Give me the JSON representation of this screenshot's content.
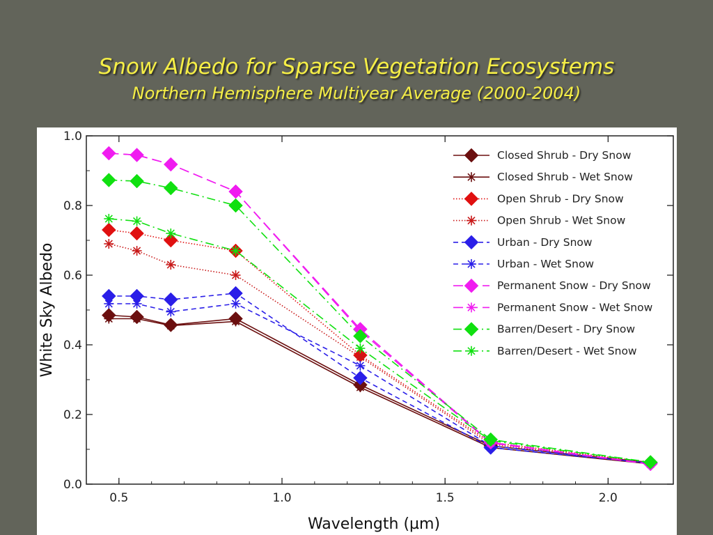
{
  "slide": {
    "title": "Snow Albedo for Sparse Vegetation Ecosystems",
    "subtitle": "Northern Hemisphere Multiyear Average (2000-2004)"
  },
  "chart_data": {
    "type": "line",
    "xlabel": "Wavelength (µm)",
    "ylabel": "White Sky Albedo",
    "xlim": [
      0.4,
      2.2
    ],
    "ylim": [
      0.0,
      1.0
    ],
    "x_ticks": [
      "0.5",
      "1.0",
      "1.5",
      "2.0"
    ],
    "x_tick_values": [
      0.5,
      1.0,
      1.5,
      2.0
    ],
    "y_ticks": [
      "0.0",
      "0.2",
      "0.4",
      "0.6",
      "0.8",
      "1.0"
    ],
    "y_tick_values": [
      0.0,
      0.2,
      0.4,
      0.6,
      0.8,
      1.0
    ],
    "legend_position": "top-right",
    "x": [
      0.469,
      0.555,
      0.659,
      0.858,
      1.24,
      1.64,
      2.13
    ],
    "series": [
      {
        "name": "Closed Shrub - Dry Snow",
        "color": "#6b0f0f",
        "marker": "diamond",
        "line": "solid",
        "values": [
          0.485,
          0.48,
          0.457,
          0.475,
          0.285,
          0.11,
          0.062
        ]
      },
      {
        "name": "Closed Shrub - Wet Snow",
        "color": "#6b0f0f",
        "marker": "asterisk",
        "line": "solid",
        "values": [
          0.475,
          0.475,
          0.455,
          0.467,
          0.278,
          0.105,
          0.058
        ]
      },
      {
        "name": "Open Shrub - Dry Snow",
        "color": "#e01010",
        "marker": "diamond",
        "line": "dotted",
        "values": [
          0.73,
          0.72,
          0.7,
          0.67,
          0.37,
          0.12,
          0.062
        ]
      },
      {
        "name": "Open Shrub - Wet Snow",
        "color": "#c81818",
        "marker": "asterisk",
        "line": "dotted",
        "values": [
          0.69,
          0.67,
          0.63,
          0.6,
          0.365,
          0.115,
          0.06
        ]
      },
      {
        "name": "Urban - Dry Snow",
        "color": "#2a1ee8",
        "marker": "diamond",
        "line": "dashed",
        "values": [
          0.54,
          0.54,
          0.53,
          0.548,
          0.305,
          0.105,
          0.06
        ]
      },
      {
        "name": "Urban - Wet Snow",
        "color": "#2a1ee8",
        "marker": "asterisk",
        "line": "dashed",
        "values": [
          0.518,
          0.518,
          0.495,
          0.518,
          0.34,
          0.11,
          0.06
        ]
      },
      {
        "name": "Permanent Snow - Dry Snow",
        "color": "#f01cf0",
        "marker": "diamond",
        "line": "longdash",
        "values": [
          0.95,
          0.945,
          0.918,
          0.84,
          0.445,
          0.12,
          0.058
        ]
      },
      {
        "name": "Permanent Snow - Wet Snow",
        "color": "#f01cf0",
        "marker": "asterisk",
        "line": "longdash",
        "values": [
          0.95,
          0.945,
          0.918,
          0.84,
          0.44,
          0.118,
          0.057
        ]
      },
      {
        "name": "Barren/Desert - Dry Snow",
        "color": "#10e010",
        "marker": "diamond",
        "line": "dashdot",
        "values": [
          0.873,
          0.87,
          0.85,
          0.8,
          0.425,
          0.128,
          0.063
        ]
      },
      {
        "name": "Barren/Desert - Wet Snow",
        "color": "#10e010",
        "marker": "asterisk",
        "line": "dashdot",
        "values": [
          0.762,
          0.755,
          0.72,
          0.67,
          0.39,
          0.125,
          0.062
        ]
      }
    ]
  }
}
